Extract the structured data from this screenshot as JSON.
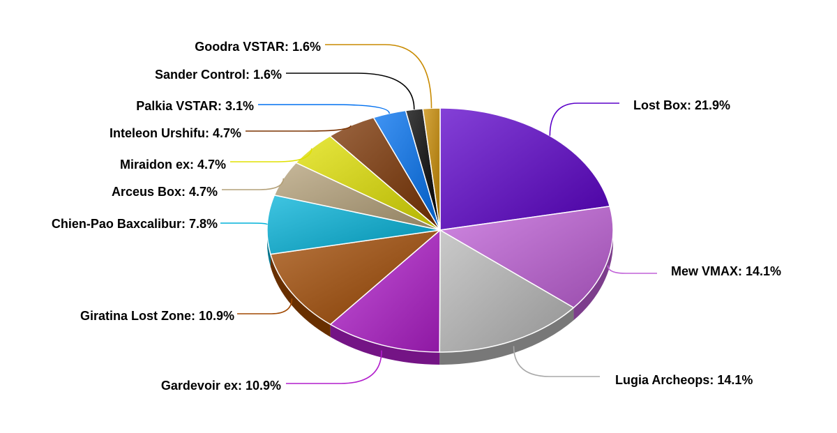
{
  "chart_data": {
    "type": "pie",
    "style": "3d-tilted",
    "title": "",
    "legend": "none",
    "slices": [
      {
        "name": "Lost Box",
        "label": "Lost Box: 21.9%",
        "value": 21.9,
        "color": "#5B00C9"
      },
      {
        "name": "Mew VMAX",
        "label": "Mew VMAX: 14.1%",
        "value": 14.1,
        "color": "#C060D8"
      },
      {
        "name": "Lugia Archeops",
        "label": "Lugia Archeops: 14.1%",
        "value": 14.1,
        "color": "#B8B8B8"
      },
      {
        "name": "Gardevoir ex",
        "label": "Gardevoir ex: 10.9%",
        "value": 10.9,
        "color": "#B21ECC"
      },
      {
        "name": "Giratina Lost Zone",
        "label": "Giratina Lost Zone: 10.9%",
        "value": 10.9,
        "color": "#A04800"
      },
      {
        "name": "Chien-Pao Baxcalibur",
        "label": "Chien-Pao Baxcalibur: 7.8%",
        "value": 7.8,
        "color": "#00B2D8"
      },
      {
        "name": "Arceus Box",
        "label": "Arceus Box: 4.7%",
        "value": 4.7,
        "color": "#B4A078"
      },
      {
        "name": "Miraidon ex",
        "label": "Miraidon ex: 4.7%",
        "value": 4.7,
        "color": "#E0E000"
      },
      {
        "name": "Inteleon Urshifu",
        "label": "Inteleon Urshifu: 4.7%",
        "value": 4.7,
        "color": "#7A3200"
      },
      {
        "name": "Palkia VSTAR",
        "label": "Palkia VSTAR: 3.1%",
        "value": 3.1,
        "color": "#0070F0"
      },
      {
        "name": "Sander Control",
        "label": "Sander Control: 1.6%",
        "value": 1.6,
        "color": "#000000"
      },
      {
        "name": "Goodra VSTAR",
        "label": "Goodra VSTAR: 1.6%",
        "value": 1.6,
        "color": "#C88A00"
      }
    ]
  }
}
